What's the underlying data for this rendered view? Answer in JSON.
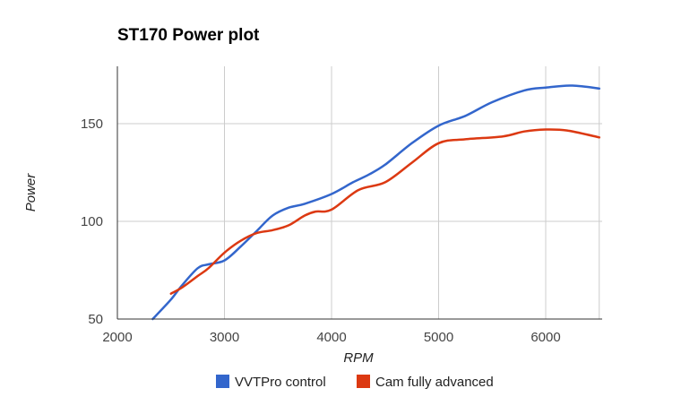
{
  "chart_data": {
    "type": "line",
    "title": "ST170 Power plot",
    "xlabel": "RPM",
    "ylabel": "Power",
    "xlim": [
      2000,
      6500
    ],
    "ylim": [
      50,
      180
    ],
    "x_ticks": [
      "2000",
      "3000",
      "4000",
      "5000",
      "6000"
    ],
    "y_ticks": [
      "50",
      "100",
      "150"
    ],
    "grid": true,
    "legend": "bottom",
    "series": [
      {
        "name": "VVTPro control",
        "color": "#3366cc",
        "points": [
          [
            2330,
            50
          ],
          [
            2500,
            60
          ],
          [
            2600,
            67
          ],
          [
            2750,
            76
          ],
          [
            2850,
            78
          ],
          [
            3000,
            80
          ],
          [
            3150,
            87
          ],
          [
            3300,
            95
          ],
          [
            3450,
            103
          ],
          [
            3600,
            107
          ],
          [
            3750,
            109
          ],
          [
            4000,
            114
          ],
          [
            4200,
            120
          ],
          [
            4350,
            124
          ],
          [
            4500,
            129
          ],
          [
            4750,
            140
          ],
          [
            5000,
            149
          ],
          [
            5250,
            154
          ],
          [
            5500,
            161
          ],
          [
            5800,
            167
          ],
          [
            6000,
            168.5
          ],
          [
            6250,
            169.5
          ],
          [
            6500,
            168
          ]
        ]
      },
      {
        "name": "Cam fully advanced",
        "color": "#dc3912",
        "points": [
          [
            2500,
            63
          ],
          [
            2600,
            66
          ],
          [
            2750,
            72
          ],
          [
            2850,
            76
          ],
          [
            3000,
            84
          ],
          [
            3150,
            90
          ],
          [
            3300,
            94
          ],
          [
            3450,
            95.5
          ],
          [
            3600,
            98
          ],
          [
            3750,
            103
          ],
          [
            3850,
            105
          ],
          [
            4000,
            106
          ],
          [
            4250,
            116
          ],
          [
            4500,
            120
          ],
          [
            4750,
            130
          ],
          [
            5000,
            140
          ],
          [
            5250,
            142
          ],
          [
            5600,
            143.5
          ],
          [
            5800,
            146
          ],
          [
            6000,
            147
          ],
          [
            6200,
            146.5
          ],
          [
            6500,
            143
          ]
        ]
      }
    ]
  }
}
